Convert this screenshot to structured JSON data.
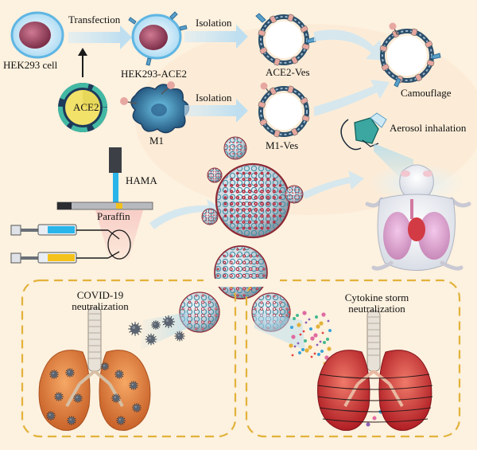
{
  "labels": {
    "hek293_cell": "HEK293 cell",
    "transfection": "Transfection",
    "ace2_plasmid": "ACE2",
    "hek293_ace2": "HEK293-ACE2",
    "isolation_top": "Isolation",
    "ace2_ves": "ACE2-Ves",
    "camouflage": "Camouflage",
    "m1": "M1",
    "isolation_bottom": "Isolation",
    "m1_ves": "M1-Ves",
    "aerosol_inhalation": "Aerosol inhalation",
    "hama": "HAMA",
    "paraffin": "Paraffin",
    "covid_neutralization_line1": "COVID-19",
    "covid_neutralization_line2": "neutralization",
    "cytokine_neutralization_line1": "Cytokine storm",
    "cytokine_neutralization_line2": "neutralization"
  },
  "colors": {
    "background": "#fdf1df",
    "arrow_fill": "#cfe6f2",
    "cell_membrane": "#7cc0e8",
    "nucleus": "#a8556e",
    "vesicle_ring": "#2c4f6b",
    "particle_frame": "#b2293d",
    "particle_lattice": "#3f8fa6",
    "lung_orange": "#e2843c",
    "lung_red": "#d23a36",
    "dashed_box": "#e2b23a",
    "hama_blue": "#29b5ea",
    "paraffin_yellow": "#f5c21b"
  },
  "icons": {
    "cell": "cell-icon",
    "plasmid": "plasmid-icon",
    "macrophage": "macrophage-icon",
    "vesicle": "vesicle-icon",
    "microparticle": "porous-microparticle-icon",
    "nebulizer": "nebulizer-mask-icon",
    "mouse": "mouse-icon",
    "syringe": "syringe-icon",
    "lungs": "lungs-icon",
    "virus": "virus-icon"
  }
}
